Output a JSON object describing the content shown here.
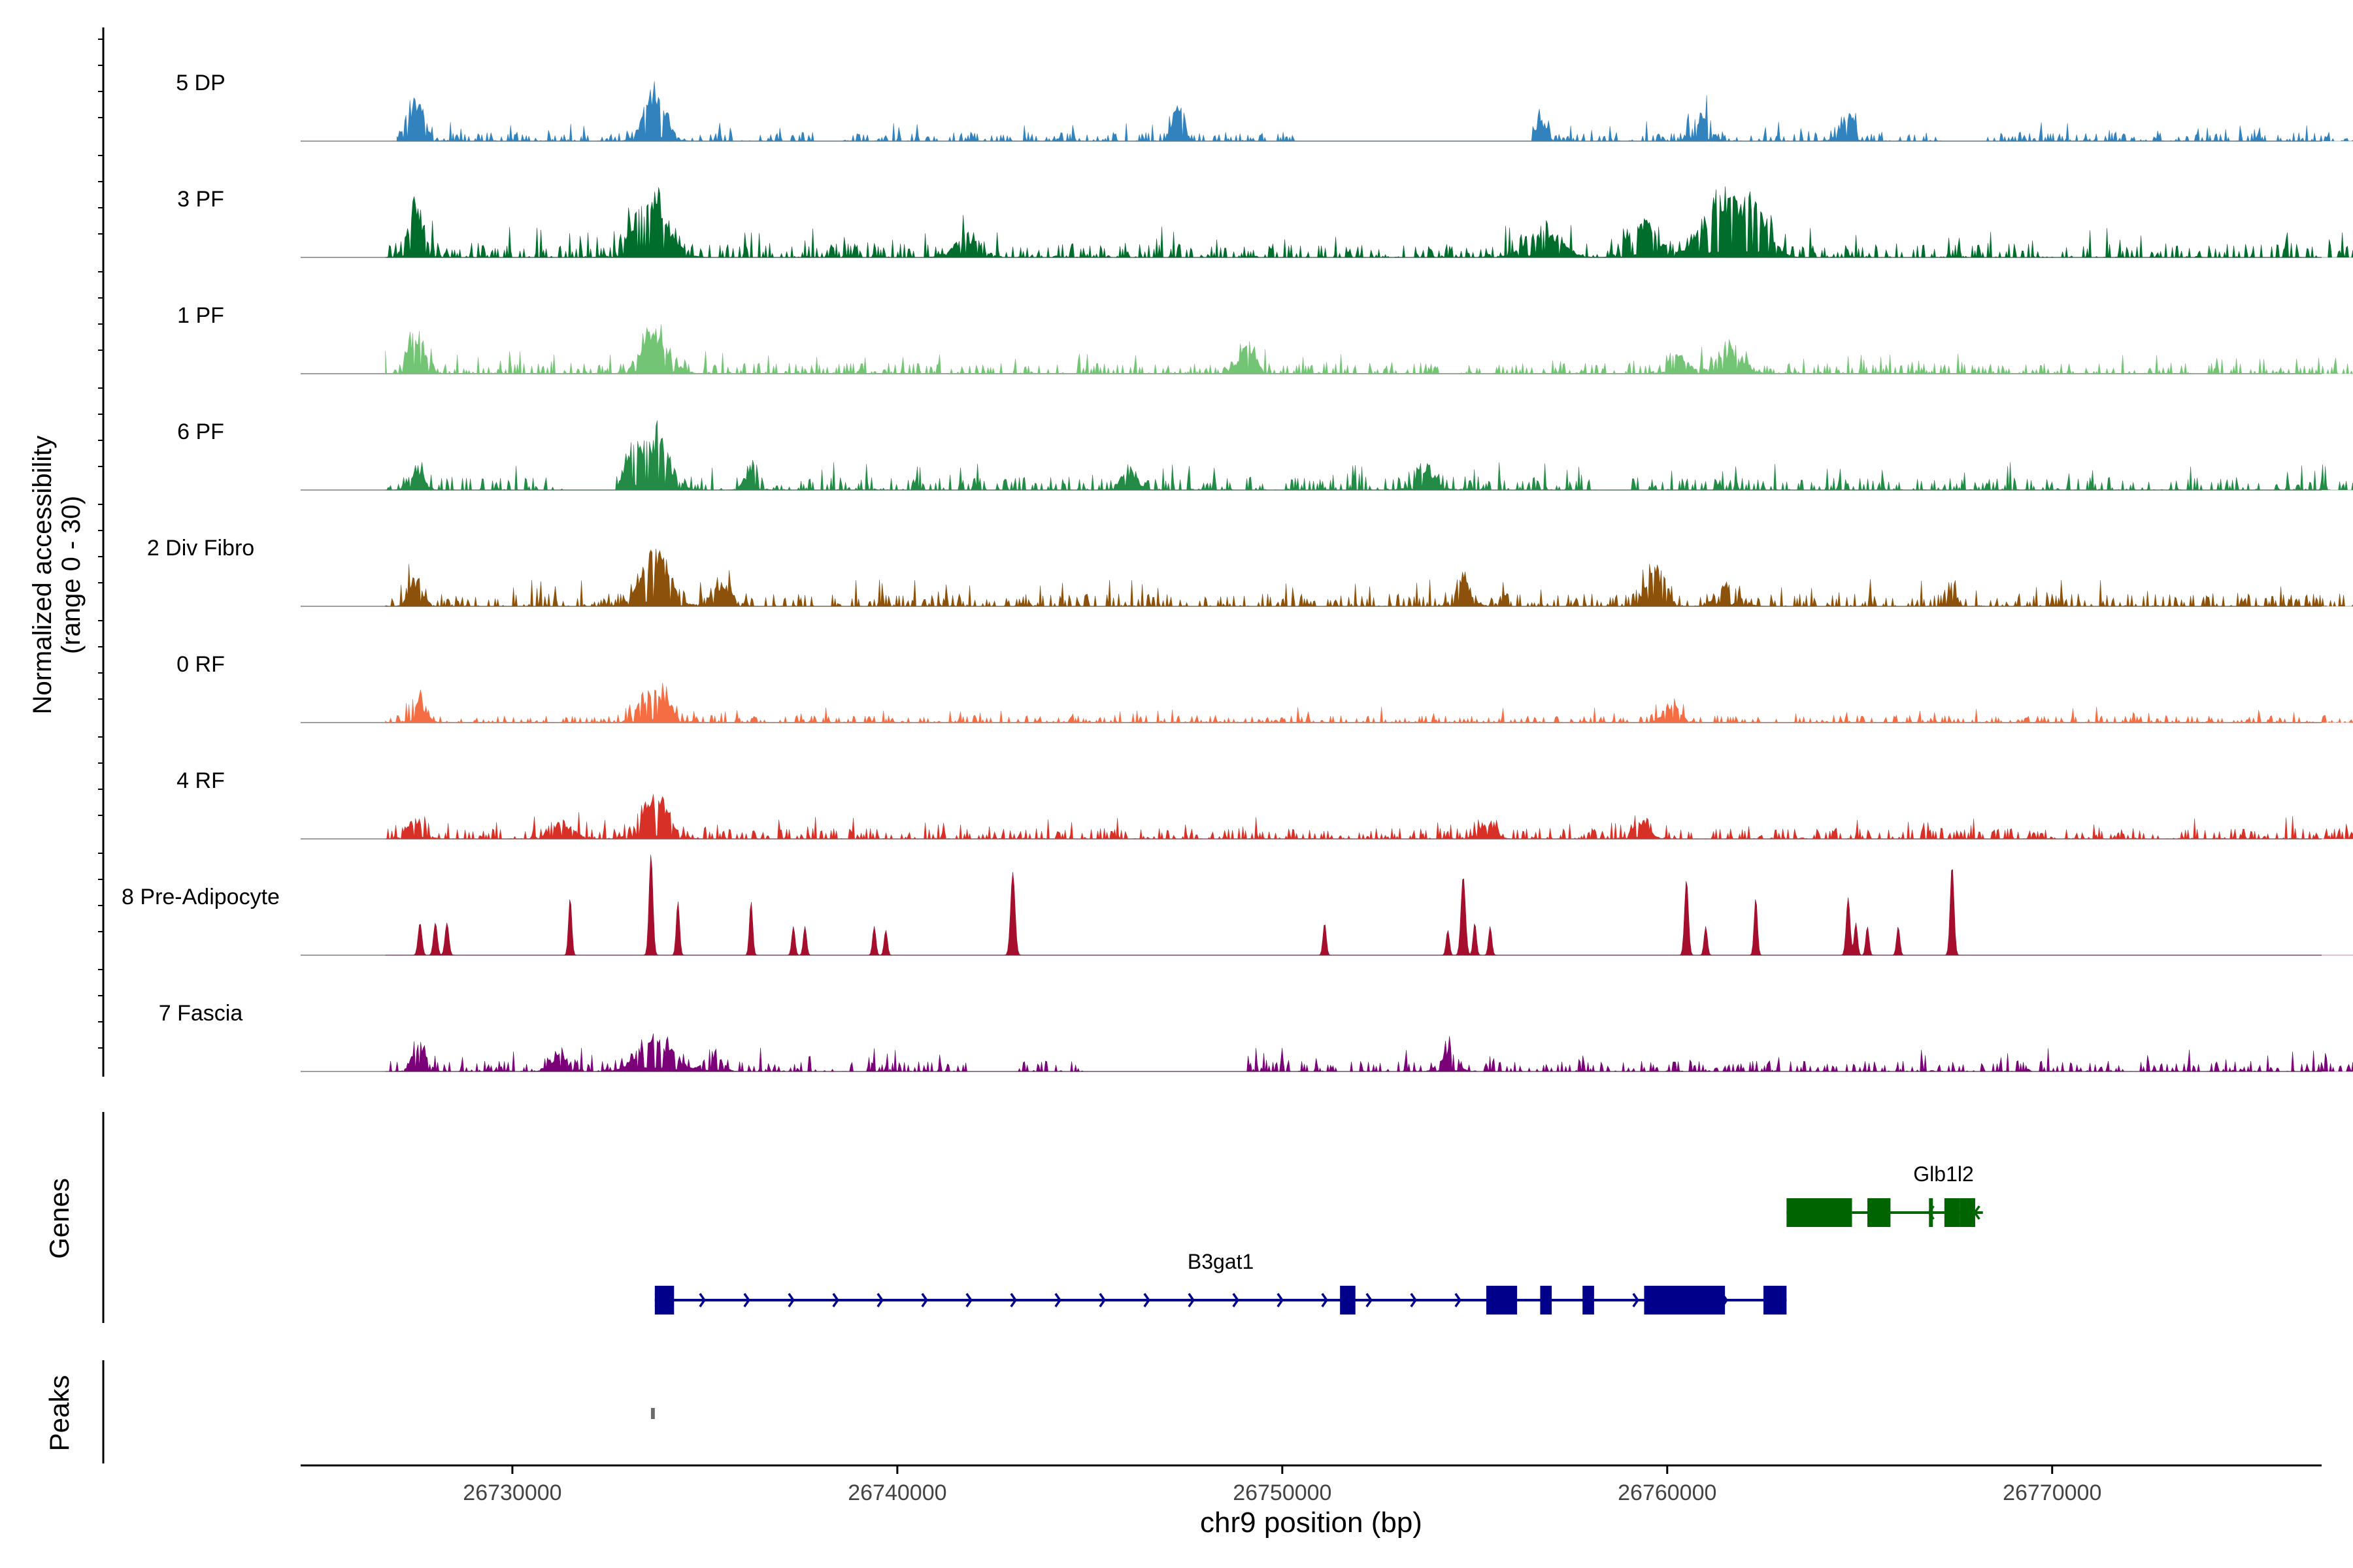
{
  "chart_data": {
    "type": "coverage-track",
    "region": "chr9:26724500-26777000",
    "xlabel": "chr9 position (bp)",
    "xlim": [
      26724500,
      26777000
    ],
    "xticks": [
      26730000,
      26740000,
      26750000,
      26760000,
      26770000
    ],
    "xtick_labels": [
      "26730000",
      "26740000",
      "26750000",
      "26760000",
      "26770000"
    ],
    "ylabel_line1": "Normalized accessibility",
    "ylabel_line2": "(range 0 - 30)",
    "ylim": [
      0,
      30
    ],
    "data_extent": [
      26727000,
      26781000
    ],
    "tracks": [
      {
        "name": "5 DP",
        "color": "#3182BD",
        "peaks": [
          [
            26727500,
            13,
            300
          ],
          [
            26733700,
            15,
            400
          ],
          [
            26747300,
            10,
            200
          ],
          [
            26756700,
            7,
            200
          ],
          [
            26760900,
            9,
            300
          ],
          [
            26764700,
            8,
            300
          ]
        ],
        "gaps": [
          [
            26737800,
            26738600
          ],
          [
            26750300,
            26756500
          ],
          [
            26767200,
            26768300
          ]
        ],
        "noise": 2.5
      },
      {
        "name": "3 PF",
        "color": "#006D2C",
        "peaks": [
          [
            26727500,
            15,
            300
          ],
          [
            26733600,
            20,
            600
          ],
          [
            26741800,
            6,
            500
          ],
          [
            26756800,
            9,
            600
          ],
          [
            26759400,
            11,
            500
          ],
          [
            26761400,
            18,
            700
          ],
          [
            26762300,
            14,
            500
          ]
        ],
        "gaps": [],
        "noise": 4
      },
      {
        "name": "1 PF",
        "color": "#74C476",
        "peaks": [
          [
            26727500,
            12,
            300
          ],
          [
            26733700,
            14,
            500
          ],
          [
            26749100,
            10,
            300
          ],
          [
            26760200,
            7,
            400
          ],
          [
            26761600,
            7,
            500
          ]
        ],
        "gaps": [],
        "noise": 3
      },
      {
        "name": "6 PF",
        "color": "#238B45",
        "peaks": [
          [
            26727500,
            7,
            250
          ],
          [
            26733700,
            17,
            500
          ],
          [
            26733100,
            10,
            250
          ],
          [
            26736200,
            6,
            250
          ],
          [
            26746000,
            6,
            300
          ],
          [
            26753700,
            6,
            400
          ]
        ],
        "gaps": [
          [
            26731400,
            26732700
          ],
          [
            26758000,
            26759000
          ]
        ],
        "noise": 3.5
      },
      {
        "name": "2 Div Fibro",
        "color": "#8C510A",
        "peaks": [
          [
            26727500,
            8,
            250
          ],
          [
            26733700,
            17,
            500
          ],
          [
            26735400,
            7,
            400
          ],
          [
            26754700,
            8,
            300
          ],
          [
            26759700,
            11,
            350
          ],
          [
            26761600,
            7,
            400
          ],
          [
            26767400,
            7,
            150
          ]
        ],
        "gaps": [],
        "noise": 3.5
      },
      {
        "name": "0 RF",
        "color": "#F46D43",
        "peaks": [
          [
            26727500,
            7,
            300
          ],
          [
            26733700,
            11,
            500
          ],
          [
            26760100,
            6,
            300
          ]
        ],
        "gaps": [],
        "noise": 2
      },
      {
        "name": "4 RF",
        "color": "#D73027",
        "peaks": [
          [
            26727500,
            6,
            300
          ],
          [
            26733700,
            13,
            500
          ],
          [
            26731300,
            5,
            400
          ],
          [
            26755300,
            5,
            300
          ],
          [
            26759300,
            6,
            300
          ]
        ],
        "gaps": [],
        "noise": 3
      },
      {
        "name": "8 Pre-Adipocyte",
        "color": "#A50F2D",
        "sparse": true,
        "peaks": [
          [
            26727600,
            9,
            70
          ],
          [
            26728000,
            9,
            70
          ],
          [
            26728300,
            9,
            70
          ],
          [
            26731500,
            16,
            60
          ],
          [
            26733600,
            28,
            70
          ],
          [
            26734300,
            15,
            60
          ],
          [
            26736200,
            15,
            60
          ],
          [
            26737300,
            8,
            60
          ],
          [
            26737600,
            8,
            60
          ],
          [
            26739400,
            8,
            60
          ],
          [
            26739700,
            7,
            60
          ],
          [
            26743000,
            23,
            80
          ],
          [
            26751100,
            9,
            60
          ],
          [
            26754300,
            7,
            60
          ],
          [
            26754700,
            22,
            80
          ],
          [
            26755000,
            9,
            60
          ],
          [
            26755400,
            8,
            60
          ],
          [
            26760500,
            21,
            70
          ],
          [
            26761000,
            8,
            60
          ],
          [
            26762300,
            16,
            60
          ],
          [
            26764700,
            16,
            70
          ],
          [
            26764900,
            9,
            60
          ],
          [
            26765200,
            8,
            60
          ],
          [
            26766000,
            8,
            60
          ],
          [
            26767400,
            25,
            70
          ]
        ],
        "gaps": [],
        "noise": 0
      },
      {
        "name": "7 Fascia",
        "color": "#7A0177",
        "peaks": [
          [
            26727600,
            9,
            250
          ],
          [
            26733700,
            11,
            600
          ],
          [
            26731200,
            5,
            300
          ],
          [
            26735200,
            6,
            300
          ],
          [
            26754300,
            6,
            300
          ]
        ],
        "gaps": [
          [
            26741800,
            26743000
          ],
          [
            26744900,
            26749100
          ]
        ],
        "noise": 3
      }
    ],
    "panel_labels": {
      "genes": "Genes",
      "peaks": "Peaks"
    },
    "genes": [
      {
        "name": "B3gat1",
        "strand": "+",
        "start": 26733700,
        "end": 26763100,
        "color": "#00008B",
        "exons": [
          [
            26733700,
            26734200
          ],
          [
            26751500,
            26751900
          ],
          [
            26755300,
            26756100
          ],
          [
            26756700,
            26757000
          ],
          [
            26757800,
            26758100
          ],
          [
            26759400,
            26761500
          ],
          [
            26762500,
            26763100
          ]
        ]
      },
      {
        "name": "Glb1l2",
        "strand": "-",
        "start": 26763100,
        "end": 26768200,
        "color": "#006400",
        "exons": [
          [
            26763100,
            26764800
          ],
          [
            26765200,
            26765800
          ],
          [
            26766800,
            26766900
          ],
          [
            26767200,
            26767600
          ],
          [
            26767600,
            26768000
          ]
        ]
      }
    ],
    "peak_regions": [
      [
        26733600,
        26733700
      ]
    ]
  }
}
